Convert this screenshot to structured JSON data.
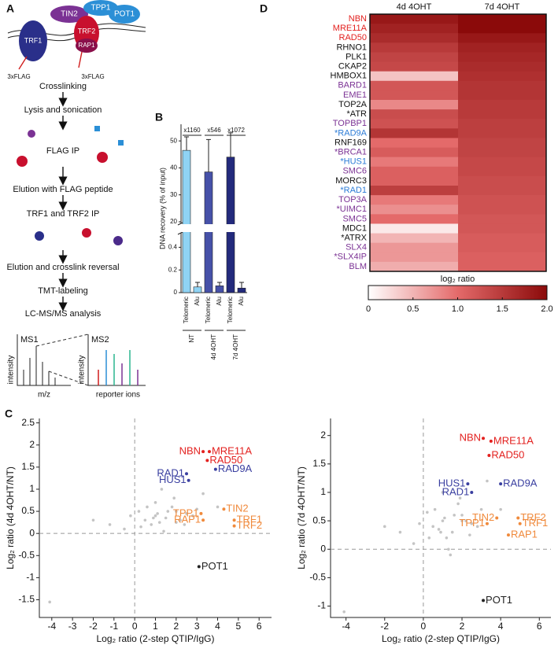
{
  "diagram": {
    "panel": "A",
    "proteins": [
      "TIN2",
      "TPP1",
      "POT1",
      "TRF1",
      "TRF2",
      "RAP1"
    ],
    "tags": [
      "3xFLAG",
      "3xFLAG"
    ],
    "steps": [
      "Crosslinking",
      "Lysis and sonication",
      "FLAG IP",
      "Elution with FLAG peptide",
      "TRF1 and TRF2  IP",
      "Elution and crosslink reversal",
      "TMT-labeling",
      "LC-MS/MS analysis"
    ],
    "ms_labels": [
      "MS1",
      "MS2",
      "intensity",
      "intensity",
      "m/z",
      "reporter ions"
    ]
  },
  "chart_data": [
    {
      "type": "bar",
      "panel": "B",
      "ylabel": "DNA recovery (% of input)",
      "categories": [
        "Telomeric",
        "Alu",
        "Telomeric",
        "Alu",
        "Telomeric",
        "Alu"
      ],
      "values": [
        46.5,
        0.05,
        38.5,
        0.06,
        44,
        0.04
      ],
      "errors": [
        5,
        0.04,
        12,
        0.03,
        9,
        0.05
      ],
      "colors": [
        "#8fd3f4",
        "#8fd3f4",
        "#4651a8",
        "#4651a8",
        "#232a7c",
        "#232a7c"
      ],
      "groups": [
        "NT",
        "4d 4OHT",
        "7d 4OHT"
      ],
      "annotations": [
        "x1160",
        "x546",
        "x1072"
      ],
      "ylim_lower": [
        0,
        0.5
      ],
      "yticks_lower": [
        0,
        0.2,
        0.4
      ],
      "ylim_upper": [
        20,
        55
      ],
      "yticks_upper": [
        20,
        30,
        40,
        50
      ]
    },
    {
      "type": "heatmap",
      "panel": "D",
      "columns": [
        "4d 4OHT",
        "7d 4OHT"
      ],
      "rows": [
        "NBN",
        "MRE11A",
        "RAD50",
        "RHNO1",
        "PLK1",
        "CKAP2",
        "HMBOX1",
        "BARD1",
        "EME1",
        "TOP2A",
        "*ATR",
        "TOPBP1",
        "*RAD9A",
        "RNF169",
        "*BRCA1",
        "*HUS1",
        "SMC6",
        "MORC3",
        "*RAD1",
        "TOP3A",
        "*UIMC1",
        "SMC5",
        "MDC1",
        "*ATRX",
        "SLX4",
        "*SLX4IP",
        "BLM"
      ],
      "row_colors": [
        "#e3211f",
        "#e3211f",
        "#e3211f",
        "#111111",
        "#111111",
        "#111111",
        "#111111",
        "#7b3294",
        "#7b3294",
        "#111111",
        "#111111",
        "#7b3294",
        "#2b7bd6",
        "#111111",
        "#7b3294",
        "#2b7bd6",
        "#7b3294",
        "#111111",
        "#2b7bd6",
        "#7b3294",
        "#7b3294",
        "#7b3294",
        "#111111",
        "#111111",
        "#7b3294",
        "#7b3294",
        "#7b3294"
      ],
      "values": [
        [
          1.85,
          2.0
        ],
        [
          1.75,
          2.0
        ],
        [
          1.65,
          1.85
        ],
        [
          1.5,
          1.75
        ],
        [
          1.4,
          1.7
        ],
        [
          1.35,
          1.65
        ],
        [
          0.4,
          1.6
        ],
        [
          1.2,
          1.55
        ],
        [
          1.2,
          1.55
        ],
        [
          0.8,
          1.5
        ],
        [
          1.3,
          1.5
        ],
        [
          1.25,
          1.45
        ],
        [
          1.55,
          1.45
        ],
        [
          1.0,
          1.4
        ],
        [
          1.15,
          1.4
        ],
        [
          0.9,
          1.35
        ],
        [
          1.1,
          1.35
        ],
        [
          1.1,
          1.3
        ],
        [
          1.45,
          1.3
        ],
        [
          0.9,
          1.25
        ],
        [
          0.75,
          1.25
        ],
        [
          1.0,
          1.2
        ],
        [
          0.15,
          1.2
        ],
        [
          0.5,
          1.15
        ],
        [
          0.7,
          1.15
        ],
        [
          0.7,
          1.1
        ],
        [
          0.55,
          1.1
        ]
      ],
      "colorbar_label": "log₂ ratio",
      "colormap": [
        "#ffffff",
        "#e46a6a",
        "#8b0a0a"
      ],
      "clim": [
        0,
        2
      ],
      "cticks": [
        0,
        0.5,
        {
          "value": 1,
          "label": "1.0"
        },
        1.5,
        {
          "value": 2,
          "label": "2.0"
        }
      ]
    },
    {
      "type": "scatter",
      "panel": "C",
      "xlabel": "Log₂ ratio (2-step QTIP/IgG)",
      "ylabel": "Log₂ ratio (4d 4OHT/NT)",
      "xlim": [
        -4.6,
        6.6
      ],
      "xticks": [
        -4,
        -3,
        -2,
        -1,
        0,
        1,
        2,
        3,
        4,
        5,
        6
      ],
      "ylim": [
        -1.9,
        2.6
      ],
      "yticks": [
        -1.5,
        -1,
        -0.5,
        0,
        0.5,
        1,
        1.5,
        2,
        2.5
      ],
      "reflines": {
        "x": 0,
        "y": 0
      },
      "background": {
        "color": "#c4c4c4",
        "x": [
          0.5,
          1,
          1.5,
          2,
          2.5,
          3,
          1.2,
          0.8,
          1.8,
          2.2,
          0.3,
          -0.5,
          -1.2,
          1.0,
          1.6,
          2.8,
          3.3,
          0.9,
          1.4,
          2.0,
          -0.2,
          0.6,
          1.1,
          1.9,
          2.4,
          -2.0,
          -4.1,
          4.0,
          0.2,
          1.3
        ],
        "y": [
          0.3,
          0.4,
          0.35,
          0.5,
          0.45,
          0.55,
          0.25,
          0.2,
          0.6,
          0.3,
          0.15,
          0.1,
          0.2,
          0.7,
          0.5,
          0.4,
          0.9,
          0.35,
          0.05,
          0.25,
          0.4,
          0.6,
          0.45,
          0.8,
          0.2,
          0.3,
          -1.55,
          0.6,
          0.5,
          1.0
        ]
      },
      "groups": [
        {
          "color": "#e3211f",
          "labels": [
            "NBN",
            "MRE11A",
            "RAD50"
          ],
          "x": [
            3.3,
            3.6,
            3.5
          ],
          "y": [
            1.85,
            1.85,
            1.65
          ]
        },
        {
          "color": "#3a3fa0",
          "labels": [
            "RAD1",
            "HUS1",
            "RAD9A"
          ],
          "x": [
            2.5,
            2.6,
            3.9
          ],
          "y": [
            1.35,
            1.2,
            1.45
          ]
        },
        {
          "color": "#f08a3c",
          "labels": [
            "TIN2",
            "TPP1",
            "RAP1",
            "TRF1",
            "TRF2"
          ],
          "x": [
            4.3,
            3.2,
            3.3,
            4.8,
            4.8
          ],
          "y": [
            0.55,
            0.45,
            0.3,
            0.3,
            0.17
          ]
        },
        {
          "color": "#222222",
          "labels": [
            "POT1"
          ],
          "x": [
            3.1
          ],
          "y": [
            -0.75
          ]
        }
      ]
    },
    {
      "type": "scatter",
      "xlabel": "Log₂ ratio (2-step QTIP/IgG)",
      "ylabel": "Log₂ ratio (7d 4OHT/NT)",
      "xlim": [
        -4.8,
        6.6
      ],
      "xticks": [
        -4,
        -2,
        0,
        2,
        4,
        6
      ],
      "ylim": [
        -1.2,
        2.3
      ],
      "yticks": [
        -1,
        -0.5,
        0,
        0.5,
        1,
        1.5,
        2
      ],
      "reflines": {
        "x": 0,
        "y": 0
      },
      "background": {
        "color": "#c4c4c4",
        "x": [
          0.5,
          1,
          1.5,
          2,
          2.5,
          3,
          1.2,
          0.8,
          1.8,
          2.2,
          0.3,
          -0.5,
          -1.2,
          1.0,
          1.6,
          2.8,
          3.3,
          0.9,
          1.4,
          2.0,
          -0.2,
          0.6,
          1.1,
          1.9,
          2.4,
          -2.0,
          -4.1,
          4.0,
          0.2,
          1.3
        ],
        "y": [
          0.4,
          0.5,
          0.3,
          0.6,
          0.45,
          0.7,
          0.2,
          0.35,
          0.8,
          0.5,
          0.2,
          0.1,
          0.3,
          1.0,
          0.6,
          0.4,
          1.2,
          0.3,
          -0.1,
          0.5,
          0.45,
          0.7,
          0.55,
          0.9,
          0.25,
          0.4,
          -1.1,
          0.7,
          0.65,
          0.0
        ]
      },
      "groups": [
        {
          "color": "#e3211f",
          "labels": [
            "NBN",
            "MRE11A",
            "RAD50"
          ],
          "x": [
            3.1,
            3.5,
            3.4
          ],
          "y": [
            1.95,
            1.9,
            1.65
          ]
        },
        {
          "color": "#3a3fa0",
          "labels": [
            "HUS1",
            "RAD9A",
            "RAD1"
          ],
          "x": [
            2.3,
            4.0,
            2.5
          ],
          "y": [
            1.15,
            1.15,
            1.0
          ]
        },
        {
          "color": "#f08a3c",
          "labels": [
            "TIN2",
            "TPP1",
            "TRF2",
            "TRF1",
            "RAP1"
          ],
          "x": [
            3.8,
            3.3,
            4.9,
            5.0,
            4.4
          ],
          "y": [
            0.55,
            0.45,
            0.55,
            0.45,
            0.25
          ]
        },
        {
          "color": "#222222",
          "labels": [
            "POT1"
          ],
          "x": [
            3.1
          ],
          "y": [
            -0.9
          ]
        }
      ]
    }
  ]
}
